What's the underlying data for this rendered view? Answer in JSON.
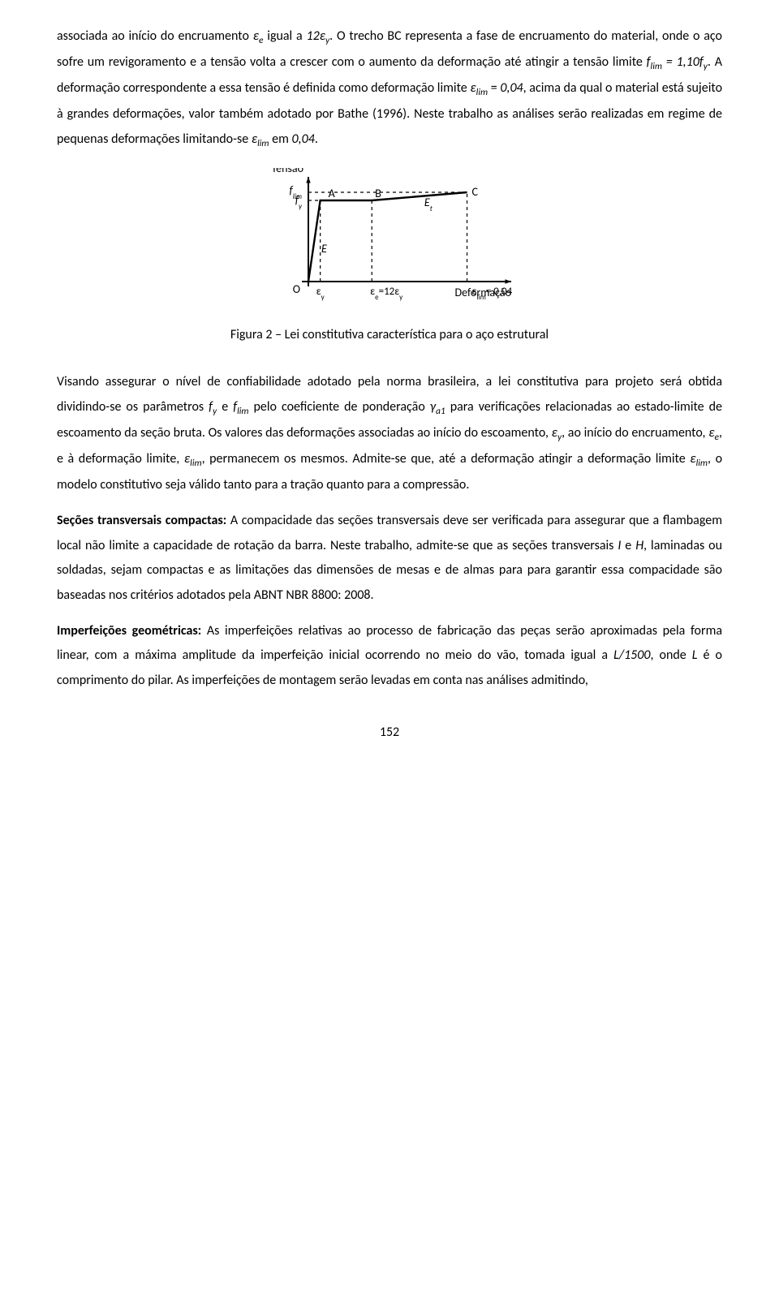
{
  "para1_html": "associada ao início do encruamento <span class='greek'>ε</span><span class='sub'>e</span> igual a <span class='italic'>12</span><span class='greek'>ε</span><span class='sub'>y</span>. O trecho BC representa a fase de encruamento do material, onde o aço sofre um revigoramento e a tensão volta a crescer com o aumento da deformação até atingir a tensão limite <span class='italic'>f<span class='sub'>lim</span> = 1,10f<span class='sub'>y</span></span>. A deformação correspondente a essa tensão é definida como deformação limite <span class='greek'>ε</span><span class='sub'>lim</span> = <span class='italic'>0,04</span>, acima da qual o material está sujeito à grandes deformações, valor também adotado por Bathe (1996). Neste trabalho as análises serão realizadas em regime de pequenas deformações limitando-se <span class='greek'>ε</span><span class='sub'>lim</span> em <span class='italic'>0,04</span>.",
  "figure_caption": "Figura 2 – Lei constitutiva característica para o aço estrutural",
  "para2_html": "Visando assegurar o nível de confiabilidade adotado pela norma brasileira, a lei constitutiva para projeto será obtida dividindo-se os parâmetros <span class='italic'>f<span class='sub'>y</span></span> e <span class='italic'>f<span class='sub'>lim</span></span> pelo coeficiente de ponderação <span class='italic'>γ<span class='sub'>a1</span></span> para verificações relacionadas ao estado-limite de escoamento da seção bruta. Os valores das deformações associadas ao início do escoamento, <span class='greek'>ε</span><span class='sub'>y</span>, ao início do encruamento, <span class='greek'>ε</span><span class='sub'>e</span>, e à deformação limite, <span class='greek'>ε</span><span class='sub'>lim</span>, permanecem os mesmos. Admite-se que, até a deformação atingir a deformação limite <span class='greek'>ε</span><span class='sub'>lim</span>, o modelo constitutivo seja válido tanto para a tração quanto para a compressão.",
  "para3_html": "<span class='bold'>Seções transversais compactas:</span> A compacidade das seções transversais deve ser verificada para assegurar que a flambagem local não limite a capacidade de rotação da barra. Neste trabalho, admite-se que as seções transversais <span class='italic'>I</span> e <span class='italic'>H</span>, laminadas ou soldadas, sejam compactas e as limitações das dimensões de mesas e de almas para para garantir essa compacidade são baseadas nos critérios adotados pela ABNT NBR 8800: 2008.",
  "para4_html": "<span class='bold'>Imperfeições geométricas:</span> As imperfeições relativas ao processo de fabricação das peças serão aproximadas pela forma linear, com a máxima amplitude da imperfeição inicial ocorrendo no meio do vão, tomada igual a <span class='italic'>L/1500</span>, onde <span class='italic'>L</span> é o comprimento do pilar. As imperfeições de montagem serão levadas em conta nas análises admitindo,",
  "page_num": "152",
  "chart": {
    "type": "line",
    "origin_label": "O",
    "x_axis_label": "Deformação",
    "y_axis_label": "Tensão",
    "x_tick_labels": [
      "ε_y",
      "ε_e=12ε_y",
      "ε_lim= 0,04"
    ],
    "y_tick_labels": [
      "f_y",
      "f_lim"
    ],
    "point_labels": [
      "A",
      "B",
      "C",
      "E",
      "E_t"
    ],
    "elastic_module_label": "E",
    "tangent_module_label": "E_t",
    "colors": {
      "axis": "#000000",
      "curve": "#000000",
      "dash": "#000000",
      "bg": "#ffffff"
    },
    "stroke_width_curve": 2.4,
    "stroke_width_axis": 2,
    "stroke_dash": "4 4",
    "xlim": [
      0,
      0.045
    ],
    "ylim": [
      0,
      1.15
    ],
    "x_ticks_pos": [
      0.003,
      0.016,
      0.04
    ],
    "y_ticks_pos": [
      1.0,
      1.1
    ],
    "curve_points": [
      [
        0,
        0
      ],
      [
        0.003,
        1.0
      ],
      [
        0.016,
        1.0
      ],
      [
        0.04,
        1.1
      ]
    ],
    "font_size_labels": 13
  }
}
